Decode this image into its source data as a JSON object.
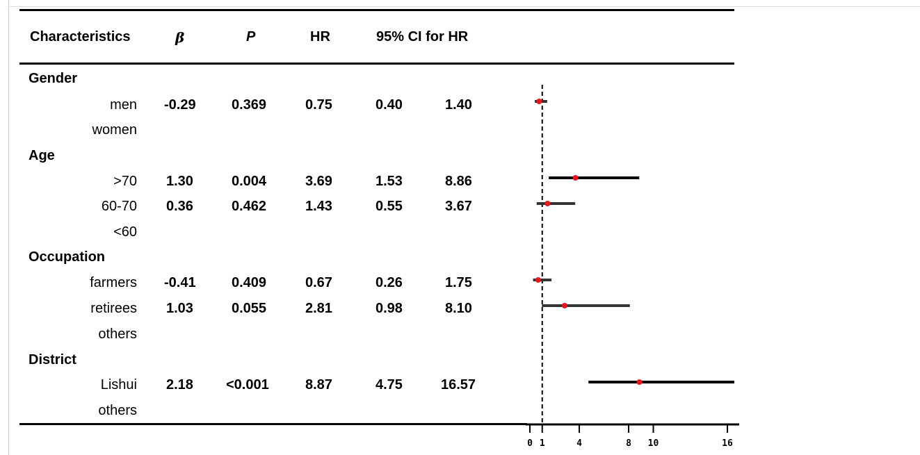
{
  "header": {
    "characteristics": "Characteristics",
    "beta": "β",
    "p": "P",
    "hr": "HR",
    "ci": "95% CI for HR"
  },
  "groups": [
    {
      "label": "Gender",
      "rows": [
        {
          "label": "men",
          "beta": "-0.29",
          "p": "0.369",
          "hr": "0.75",
          "lo": "0.40",
          "hi": "1.40"
        },
        {
          "label": "women"
        }
      ]
    },
    {
      "label": "Age",
      "rows": [
        {
          "label": ">70",
          "beta": "1.30",
          "p": "0.004",
          "hr": "3.69",
          "lo": "1.53",
          "hi": "8.86"
        },
        {
          "label": "60-70",
          "beta": "0.36",
          "p": "0.462",
          "hr": "1.43",
          "lo": "0.55",
          "hi": "3.67"
        },
        {
          "label": "<60"
        }
      ]
    },
    {
      "label": "Occupation",
      "rows": [
        {
          "label": "farmers",
          "beta": "-0.41",
          "p": "0.409",
          "hr": "0.67",
          "lo": "0.26",
          "hi": "1.75"
        },
        {
          "label": "retirees",
          "beta": "1.03",
          "p": "0.055",
          "hr": "2.81",
          "lo": "0.98",
          "hi": "8.10"
        },
        {
          "label": "others"
        }
      ]
    },
    {
      "label": "District",
      "rows": [
        {
          "label": "Lishui",
          "beta": "2.18",
          "p": "<0.001",
          "hr": "8.87",
          "lo": "4.75",
          "hi": "16.57"
        },
        {
          "label": "others"
        }
      ]
    }
  ],
  "chart_data": {
    "type": "forest",
    "reference_line": 1,
    "xlim": [
      0,
      16
    ],
    "xticks": [
      "0",
      "1",
      "4",
      "8",
      "10",
      "16"
    ],
    "series": [
      {
        "label": "men",
        "hr": 0.75,
        "lo": 0.4,
        "hi": 1.4
      },
      {
        "label": ">70",
        "hr": 3.69,
        "lo": 1.53,
        "hi": 8.86
      },
      {
        "label": "60-70",
        "hr": 1.43,
        "lo": 0.55,
        "hi": 3.67
      },
      {
        "label": "farmers",
        "hr": 0.67,
        "lo": 0.26,
        "hi": 1.75
      },
      {
        "label": "retirees",
        "hr": 2.81,
        "lo": 0.98,
        "hi": 8.1
      },
      {
        "label": "Lishui",
        "hr": 8.87,
        "lo": 4.75,
        "hi": 16.57
      }
    ],
    "colors": {
      "point": "#e8161b",
      "line": "#000000",
      "line_nonsig": "#333333"
    }
  }
}
